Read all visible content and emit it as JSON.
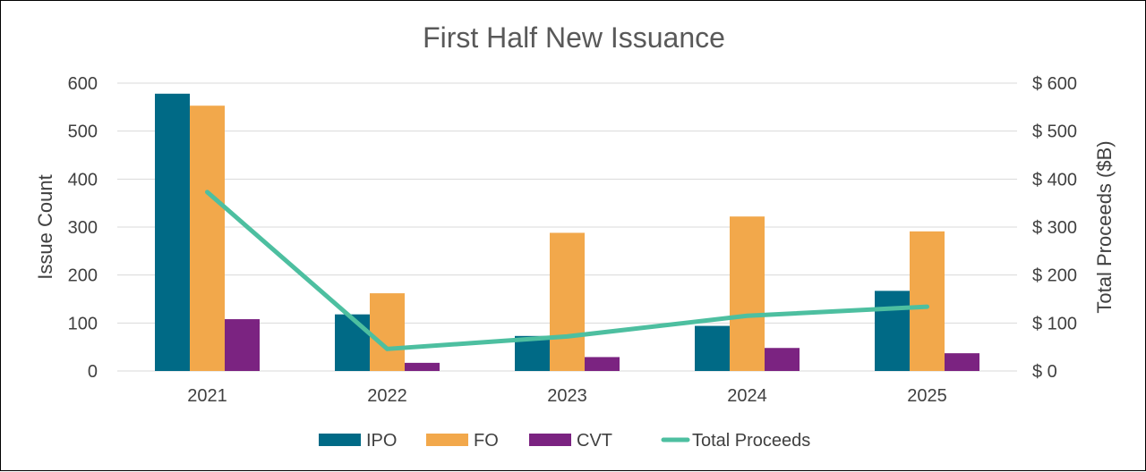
{
  "chart_data": {
    "type": "bar",
    "title": "First Half New Issuance",
    "categories": [
      "2021",
      "2022",
      "2023",
      "2024",
      "2025"
    ],
    "ylabel": "Issue Count",
    "y2label": "Total Proceeds ($B)",
    "ylim": [
      0,
      600
    ],
    "y2lim": [
      0,
      600
    ],
    "yticks": [
      "0",
      "100",
      "200",
      "300",
      "400",
      "500",
      "600"
    ],
    "y2ticks": [
      "$ 0",
      "$ 100",
      "$ 200",
      "$ 300",
      "$ 400",
      "$ 500",
      "$ 600"
    ],
    "grid": true,
    "legend_position": "bottom",
    "series": [
      {
        "name": "IPO",
        "type": "bar",
        "axis": "left",
        "color": "#006a86",
        "values": [
          578,
          118,
          73,
          94,
          167
        ]
      },
      {
        "name": "FO",
        "type": "bar",
        "axis": "left",
        "color": "#f2a84b",
        "values": [
          553,
          162,
          288,
          322,
          291
        ]
      },
      {
        "name": "CVT",
        "type": "bar",
        "axis": "left",
        "color": "#7b2381",
        "values": [
          108,
          17,
          29,
          48,
          37
        ]
      },
      {
        "name": "Total Proceeds",
        "type": "line",
        "axis": "right",
        "color": "#4dbfa0",
        "values": [
          373,
          46,
          72,
          115,
          134
        ]
      }
    ]
  }
}
